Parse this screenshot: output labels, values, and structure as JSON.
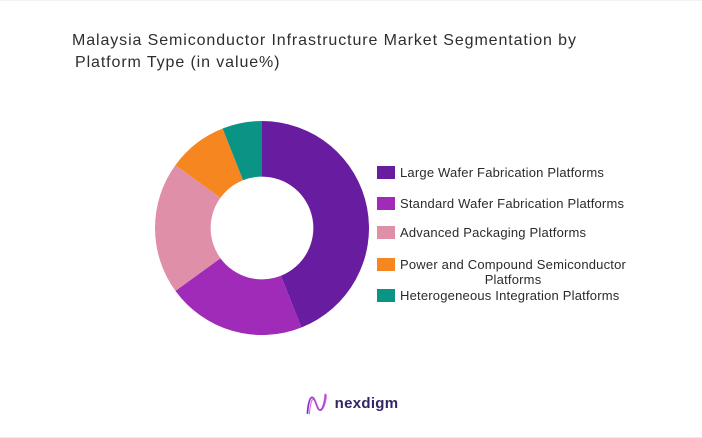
{
  "title": {
    "line1": "Malaysia Semiconductor Infrastructure Market Segmentation by",
    "line2": "Platform Type (in value%)"
  },
  "chart_data": {
    "type": "pie",
    "subtype": "donut",
    "title": "Malaysia Semiconductor Infrastructure Market Segmentation by Platform Type (in value%)",
    "unit": "value %",
    "labels": [
      "Large Wafer Fabrication Platforms",
      "Standard Wafer Fabrication Platforms",
      "Advanced Packaging Platforms",
      "Power and Compound Semiconductor Platforms",
      "Heterogeneous Integration Platforms"
    ],
    "values": [
      44,
      21,
      20,
      9,
      6
    ],
    "colors": [
      "#681CA0",
      "#A02BB8",
      "#E08FA9",
      "#F6861F",
      "#0A9486"
    ],
    "hole_ratio": 0.48,
    "start_angle_deg": 0,
    "direction": "clockwise",
    "data_labels": "none",
    "legend_position": "right"
  },
  "legend": {
    "items": [
      {
        "label": "Large Wafer Fabrication Platforms"
      },
      {
        "label": "Standard Wafer Fabrication Platforms"
      },
      {
        "label": "Advanced Packaging Platforms"
      },
      {
        "label": "Power and Compound Semiconductor",
        "label2": "Platforms"
      },
      {
        "label": "Heterogeneous Integration Platforms"
      }
    ]
  },
  "footer": {
    "brand": "nexdigm",
    "logo_icon": "nexdigm-wave-icon",
    "brand_color": "#342566",
    "mark_gradient": [
      "#7A2FC2",
      "#C64BD9"
    ]
  }
}
